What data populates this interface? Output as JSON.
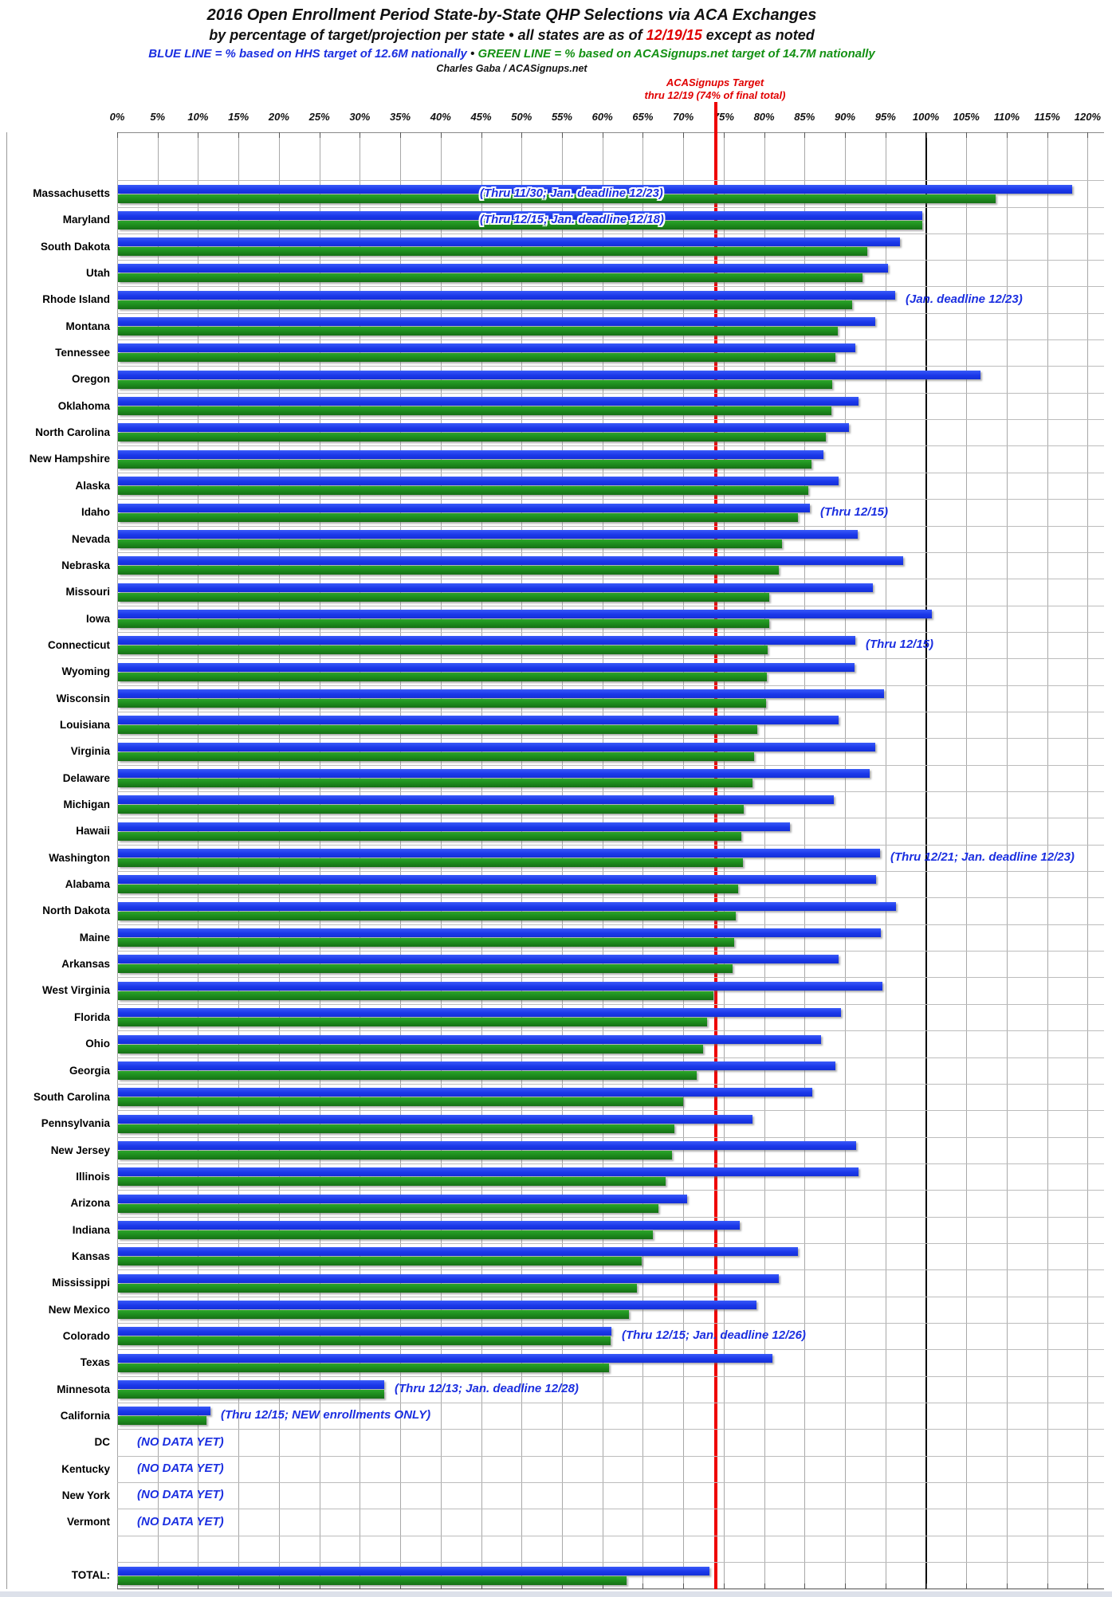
{
  "header": {
    "title": "2016 Open Enrollment Period State-by-State QHP Selections via ACA Exchanges",
    "subtitle_pre": "by percentage of target/projection per state  •  all states are as of ",
    "subtitle_date": "12/19/15",
    "subtitle_post": " except as noted",
    "legend_blue": "BLUE LINE = % based on HHS target of 12.6M nationally",
    "legend_sep": " • ",
    "legend_green": "GREEN LINE = % based on ACASignups.net target of 14.7M nationally",
    "credit": "Charles Gaba / ACASignups.net"
  },
  "target_line": {
    "label_line1": "ACASignups Target",
    "label_line2": "thru 12/19 (74% of final total)",
    "value_pct": 74,
    "color": "#ee0000"
  },
  "axis": {
    "min": 0,
    "max": 120,
    "step": 5,
    "unit": "%"
  },
  "colors": {
    "blue_bar": "#1b38ea",
    "green_bar": "#1d8a1d",
    "hundred_line": "#000000",
    "grid": "#a8a8a8",
    "note_text": "#1b2fe0",
    "target_red": "#ee0000"
  },
  "total_label": "TOTAL:",
  "chart_data": {
    "type": "bar",
    "orientation": "horizontal",
    "title": "2016 Open Enrollment Period State-by-State QHP Selections via ACA Exchanges",
    "xlabel": "% of target/projection",
    "xlim": [
      0,
      120
    ],
    "tick_step": 5,
    "grid": true,
    "reference_lines": [
      {
        "value": 74,
        "label": "ACASignups Target thru 12/19 (74% of final total)",
        "color": "red"
      },
      {
        "value": 100,
        "label": "100% of target",
        "color": "black"
      }
    ],
    "series_names": [
      "% based on HHS target (blue)",
      "% based on ACASignups.net target (green)"
    ],
    "states": [
      {
        "name": "Massachusetts",
        "blue": 118.0,
        "green": 108.5,
        "note": "(Thru 11/30; Jan. deadline 12/23)",
        "note_pos": "over"
      },
      {
        "name": "Maryland",
        "blue": 99.5,
        "green": 99.5,
        "note": "(Thru 12/15; Jan. deadline 12/18)",
        "note_pos": "over"
      },
      {
        "name": "South Dakota",
        "blue": 96.7,
        "green": 92.7
      },
      {
        "name": "Utah",
        "blue": 95.2,
        "green": 92.1
      },
      {
        "name": "Rhode Island",
        "blue": 96.1,
        "green": 90.8,
        "note": "(Jan. deadline 12/23)",
        "note_pos": "after"
      },
      {
        "name": "Montana",
        "blue": 93.6,
        "green": 89.0
      },
      {
        "name": "Tennessee",
        "blue": 91.2,
        "green": 88.7
      },
      {
        "name": "Oregon",
        "blue": 106.7,
        "green": 88.3
      },
      {
        "name": "Oklahoma",
        "blue": 91.6,
        "green": 88.2
      },
      {
        "name": "North Carolina",
        "blue": 90.4,
        "green": 87.5
      },
      {
        "name": "New Hampshire",
        "blue": 87.2,
        "green": 85.8
      },
      {
        "name": "Alaska",
        "blue": 89.1,
        "green": 85.4
      },
      {
        "name": "Idaho",
        "blue": 85.6,
        "green": 84.1,
        "note": "(Thru 12/15)",
        "note_pos": "after"
      },
      {
        "name": "Nevada",
        "blue": 91.5,
        "green": 82.1
      },
      {
        "name": "Nebraska",
        "blue": 97.1,
        "green": 81.7
      },
      {
        "name": "Missouri",
        "blue": 93.3,
        "green": 80.5
      },
      {
        "name": "Iowa",
        "blue": 100.6,
        "green": 80.5
      },
      {
        "name": "Connecticut",
        "blue": 91.2,
        "green": 80.3,
        "note": "(Thru 12/15)",
        "note_pos": "after"
      },
      {
        "name": "Wyoming",
        "blue": 91.1,
        "green": 80.2
      },
      {
        "name": "Wisconsin",
        "blue": 94.7,
        "green": 80.1
      },
      {
        "name": "Louisiana",
        "blue": 89.1,
        "green": 79.1
      },
      {
        "name": "Virginia",
        "blue": 93.6,
        "green": 78.7
      },
      {
        "name": "Delaware",
        "blue": 93.0,
        "green": 78.5
      },
      {
        "name": "Michigan",
        "blue": 88.5,
        "green": 77.4
      },
      {
        "name": "Hawaii",
        "blue": 83.1,
        "green": 77.1
      },
      {
        "name": "Washington",
        "blue": 94.2,
        "green": 77.3,
        "note": "(Thru 12/21; Jan. deadline 12/23)",
        "note_pos": "after"
      },
      {
        "name": "Alabama",
        "blue": 93.7,
        "green": 76.7
      },
      {
        "name": "North Dakota",
        "blue": 96.2,
        "green": 76.4
      },
      {
        "name": "Maine",
        "blue": 94.3,
        "green": 76.2
      },
      {
        "name": "Arkansas",
        "blue": 89.1,
        "green": 76.0
      },
      {
        "name": "West Virginia",
        "blue": 94.5,
        "green": 73.6
      },
      {
        "name": "Florida",
        "blue": 89.4,
        "green": 72.8
      },
      {
        "name": "Ohio",
        "blue": 86.9,
        "green": 72.4
      },
      {
        "name": "Georgia",
        "blue": 88.7,
        "green": 71.6
      },
      {
        "name": "South Carolina",
        "blue": 85.9,
        "green": 69.9
      },
      {
        "name": "Pennsylvania",
        "blue": 78.5,
        "green": 68.8
      },
      {
        "name": "New Jersey",
        "blue": 91.3,
        "green": 68.5
      },
      {
        "name": "Illinois",
        "blue": 91.6,
        "green": 67.7
      },
      {
        "name": "Arizona",
        "blue": 70.4,
        "green": 66.8
      },
      {
        "name": "Indiana",
        "blue": 76.9,
        "green": 66.1
      },
      {
        "name": "Kansas",
        "blue": 84.1,
        "green": 64.8
      },
      {
        "name": "Mississippi",
        "blue": 81.7,
        "green": 64.2
      },
      {
        "name": "New Mexico",
        "blue": 79.0,
        "green": 63.2
      },
      {
        "name": "Colorado",
        "blue": 61.0,
        "green": 60.9,
        "note": "(Thru 12/15; Jan. deadline 12/26)",
        "note_pos": "after"
      },
      {
        "name": "Texas",
        "blue": 80.9,
        "green": 60.7
      },
      {
        "name": "Minnesota",
        "blue": 32.9,
        "green": 32.9,
        "note": "(Thru 12/13; Jan. deadline 12/28)",
        "note_pos": "after"
      },
      {
        "name": "California",
        "blue": 11.4,
        "green": 10.9,
        "note": "(Thru 12/15; NEW enrollments ONLY)",
        "note_pos": "after"
      },
      {
        "name": "DC",
        "blue": null,
        "green": null,
        "note": "(NO DATA YET)",
        "note_pos": "nodata"
      },
      {
        "name": "Kentucky",
        "blue": null,
        "green": null,
        "note": "(NO DATA YET)",
        "note_pos": "nodata"
      },
      {
        "name": "New York",
        "blue": null,
        "green": null,
        "note": "(NO DATA YET)",
        "note_pos": "nodata"
      },
      {
        "name": "Vermont",
        "blue": null,
        "green": null,
        "note": "(NO DATA YET)",
        "note_pos": "nodata"
      }
    ],
    "total": {
      "name": "TOTAL:",
      "blue": 73.1,
      "green": 62.9
    }
  }
}
